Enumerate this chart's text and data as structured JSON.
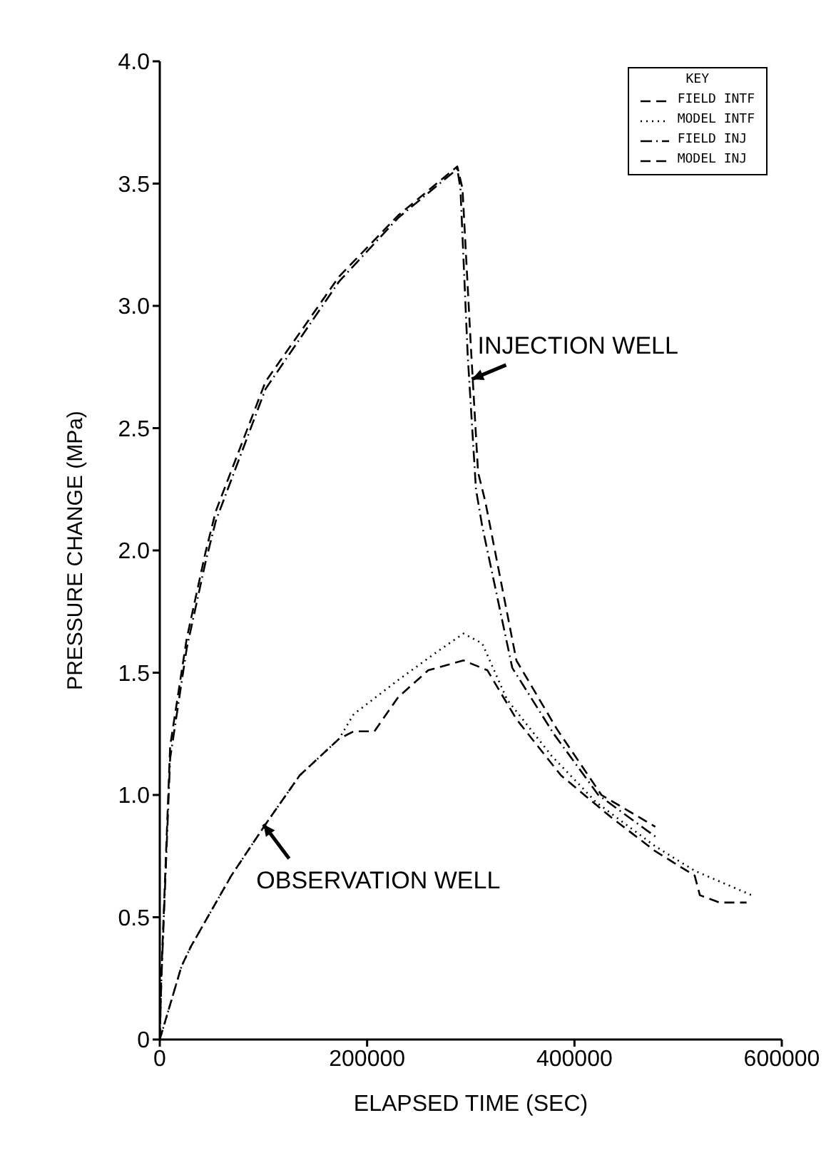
{
  "chart_data": {
    "type": "line",
    "xlabel": "ELAPSED TIME (SEC)",
    "ylabel": "PRESSURE CHANGE (MPa)",
    "legend_title": "KEY",
    "legend": "top right",
    "grid": false,
    "marker": "none",
    "xlim": [
      0,
      600000
    ],
    "xticks": [
      0,
      200000,
      400000,
      600000
    ],
    "ylim": [
      0,
      4
    ],
    "yticks": [
      0,
      0.5,
      {
        "value": 1,
        "label": "1.0"
      },
      1.5,
      {
        "value": 2,
        "label": "2.0"
      },
      2.5,
      {
        "value": 3,
        "label": "3.0"
      },
      3.5,
      {
        "value": 4,
        "label": "4.0"
      }
    ],
    "annotations": [
      {
        "text": "INJECTION WELL",
        "x": 301000,
        "y": 2.7
      },
      {
        "text": "OBSERVATION WELL",
        "x": 100000,
        "y": 0.88
      }
    ],
    "series": [
      {
        "name": "FIELD INTF",
        "color": "#000000",
        "line_style": "dashed",
        "x": [
          0,
          21000,
          30000,
          69000,
          102000,
          135000,
          173000,
          187000,
          207000,
          230000,
          259000,
          293000,
          316000,
          344000,
          387000,
          435000,
          478000,
          516000,
          521000,
          540000,
          566000
        ],
        "values": [
          0,
          0.3,
          0.38,
          0.67,
          0.88,
          1.08,
          1.23,
          1.26,
          1.26,
          1.4,
          1.51,
          1.55,
          1.51,
          1.31,
          1.08,
          0.91,
          0.77,
          0.67,
          0.59,
          0.56,
          0.56
        ]
      },
      {
        "name": "MODEL INTF",
        "color": "#000000",
        "line_style": "dotted",
        "x": [
          0,
          21000,
          30000,
          69000,
          102000,
          135000,
          173000,
          187000,
          230000,
          269000,
          293000,
          311000,
          335000,
          378000,
          421000,
          478000,
          516000,
          571000
        ],
        "values": [
          0,
          0.3,
          0.38,
          0.67,
          0.88,
          1.08,
          1.23,
          1.33,
          1.47,
          1.59,
          1.66,
          1.62,
          1.39,
          1.16,
          0.97,
          0.79,
          0.69,
          0.59
        ]
      },
      {
        "name": "FIELD INJ",
        "color": "#000000",
        "line_style": "dashdot",
        "x": [
          0,
          1500,
          10000,
          26000,
          44000,
          54000,
          102000,
          173000,
          230000,
          287000,
          290000,
          297000,
          305000,
          311000,
          340000,
          380000,
          423000,
          478000
        ],
        "values": [
          0,
          0.24,
          1.15,
          1.6,
          1.95,
          2.12,
          2.66,
          3.1,
          3.36,
          3.56,
          3.48,
          2.8,
          2.25,
          2.1,
          1.52,
          1.25,
          1.0,
          0.83
        ]
      },
      {
        "name": "MODEL INJ",
        "color": "#000000",
        "line_style": "dashed",
        "x": [
          0,
          1500,
          10000,
          26000,
          44000,
          54000,
          102000,
          173000,
          230000,
          287000,
          292000,
          300000,
          307000,
          314000,
          344000,
          383000,
          426000,
          478000
        ],
        "values": [
          0,
          0.26,
          1.2,
          1.64,
          1.99,
          2.16,
          2.69,
          3.12,
          3.37,
          3.57,
          3.48,
          2.84,
          2.32,
          2.2,
          1.55,
          1.27,
          1.0,
          0.87
        ]
      }
    ]
  }
}
